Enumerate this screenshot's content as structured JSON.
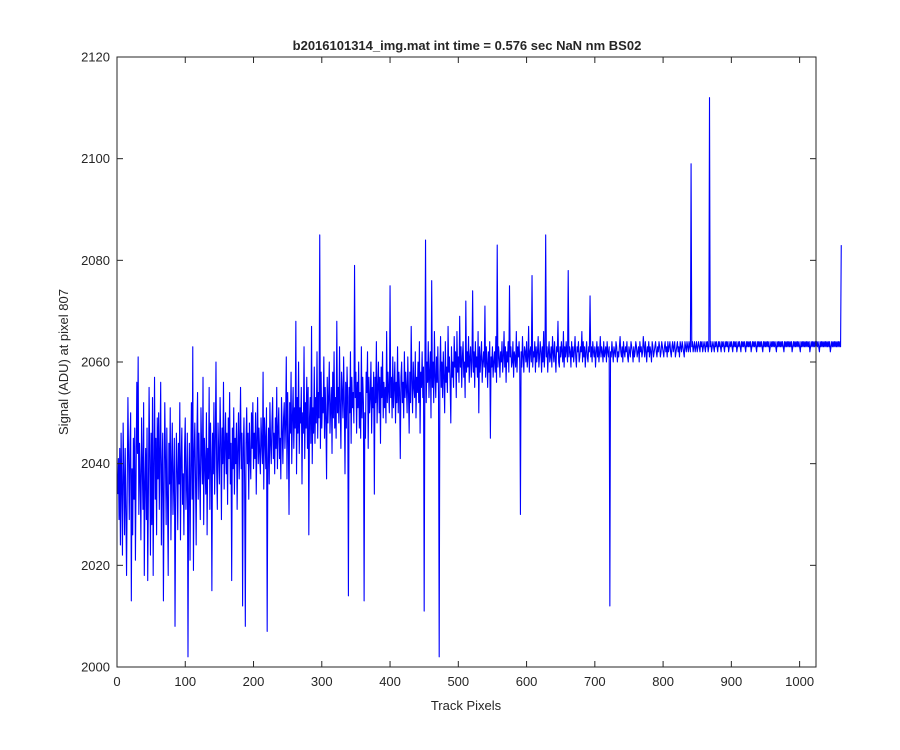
{
  "colors": {
    "series": "#0000ff",
    "axes": "#262626",
    "background": "#ffffff"
  },
  "chart_data": {
    "type": "line",
    "title": "b2016101314_img.mat int time = 0.576 sec  NaN nm BS02",
    "xlabel": "Track Pixels",
    "ylabel": "Signal (ADU) at pixel 807",
    "xlim": [
      0,
      1024
    ],
    "ylim": [
      2000,
      2120
    ],
    "xticks": [
      0,
      100,
      200,
      300,
      400,
      500,
      600,
      700,
      800,
      900,
      1000
    ],
    "yticks": [
      2000,
      2020,
      2040,
      2060,
      2080,
      2100,
      2120
    ],
    "grid": false,
    "box": true,
    "series": [
      {
        "color": "#0000ff",
        "x_start": 1,
        "x_step": 1,
        "values": [
          2034,
          2041,
          2029,
          2043,
          2024,
          2046,
          2035,
          2022,
          2048,
          2038,
          2026,
          2043,
          2031,
          2018,
          2036,
          2053,
          2041,
          2029,
          2044,
          2050,
          2013,
          2039,
          2026,
          2045,
          2033,
          2047,
          2021,
          2038,
          2056,
          2042,
          2061,
          2030,
          2044,
          2037,
          2025,
          2049,
          2040,
          2031,
          2052,
          2018,
          2036,
          2043,
          2029,
          2047,
          2017,
          2034,
          2055,
          2041,
          2022,
          2046,
          2028,
          2053,
          2018,
          2040,
          2057,
          2033,
          2045,
          2026,
          2049,
          2037,
          2050,
          2031,
          2043,
          2056,
          2024,
          2039,
          2046,
          2013,
          2035,
          2052,
          2041,
          2028,
          2047,
          2033,
          2018,
          2044,
          2036,
          2051,
          2025,
          2040,
          2048,
          2030,
          2037,
          2045,
          2008,
          2033,
          2046,
          2039,
          2027,
          2044,
          2036,
          2052,
          2025,
          2041,
          2047,
          2032,
          2038,
          2026,
          2043,
          2049,
          2031,
          2037,
          2046,
          2002,
          2035,
          2044,
          2021,
          2039,
          2052,
          2033,
          2063,
          2019,
          2042,
          2048,
          2037,
          2024,
          2045,
          2054,
          2033,
          2046,
          2038,
          2029,
          2051,
          2043,
          2036,
          2057,
          2028,
          2045,
          2040,
          2034,
          2050,
          2026,
          2043,
          2037,
          2055,
          2031,
          2048,
          2041,
          2015,
          2046,
          2038,
          2052,
          2034,
          2044,
          2060,
          2039,
          2031,
          2048,
          2042,
          2036,
          2053,
          2045,
          2029,
          2047,
          2040,
          2056,
          2035,
          2043,
          2050,
          2038,
          2046,
          2032,
          2049,
          2041,
          2054,
          2036,
          2044,
          2017,
          2047,
          2039,
          2051,
          2034,
          2045,
          2040,
          2048,
          2031,
          2043,
          2050,
          2037,
          2045,
          2055,
          2039,
          2046,
          2012,
          2043,
          2049,
          2036,
          2008,
          2044,
          2051,
          2040,
          2046,
          2033,
          2048,
          2041,
          2037,
          2050,
          2043,
          2052,
          2039,
          2046,
          2041,
          2050,
          2034,
          2045,
          2053,
          2040,
          2047,
          2042,
          2038,
          2049,
          2044,
          2040,
          2058,
          2035,
          2049,
          2045,
          2039,
          2051,
          2007,
          2041,
          2047,
          2036,
          2052,
          2044,
          2040,
          2048,
          2053,
          2041,
          2046,
          2038,
          2049,
          2043,
          2055,
          2039,
          2047,
          2051,
          2041,
          2045,
          2037,
          2053,
          2047,
          2040,
          2049,
          2052,
          2043,
          2048,
          2061,
          2037,
          2054,
          2045,
          2030,
          2052,
          2046,
          2058,
          2040,
          2049,
          2055,
          2043,
          2051,
          2047,
          2068,
          2038,
          2053,
          2046,
          2060,
          2042,
          2051,
          2048,
          2055,
          2036,
          2050,
          2046,
          2063,
          2041,
          2052,
          2047,
          2057,
          2043,
          2055,
          2026,
          2049,
          2053,
          2044,
          2067,
          2040,
          2051,
          2046,
          2059,
          2044,
          2053,
          2048,
          2062,
          2045,
          2054,
          2049,
          2085,
          2043,
          2058,
          2047,
          2053,
          2050,
          2061,
          2045,
          2055,
          2049,
          2037,
          2057,
          2048,
          2053,
          2060,
          2046,
          2051,
          2055,
          2042,
          2058,
          2049,
          2062,
          2047,
          2053,
          2045,
          2068,
          2050,
          2055,
          2048,
          2063,
          2051,
          2043,
          2058,
          2054,
          2049,
          2061,
          2052,
          2038,
          2056,
          2047,
          2059,
          2053,
          2014,
          2055,
          2050,
          2062,
          2044,
          2057,
          2051,
          2054,
          2048,
          2079,
          2053,
          2058,
          2046,
          2056,
          2051,
          2060,
          2047,
          2054,
          2045,
          2063,
          2049,
          2057,
          2052,
          2013,
          2050,
          2045,
          2058,
          2054,
          2062,
          2043,
          2057,
          2050,
          2053,
          2060,
          2046,
          2055,
          2051,
          2058,
          2034,
          2057,
          2052,
          2064,
          2048,
          2055,
          2060,
          2050,
          2057,
          2044,
          2059,
          2053,
          2062,
          2049,
          2056,
          2051,
          2055,
          2048,
          2066,
          2052,
          2058,
          2054,
          2050,
          2075,
          2053,
          2057,
          2049,
          2061,
          2051,
          2055,
          2060,
          2048,
          2056,
          2052,
          2063,
          2050,
          2058,
          2054,
          2041,
          2057,
          2060,
          2052,
          2056,
          2049,
          2062,
          2053,
          2058,
          2055,
          2050,
          2061,
          2054,
          2046,
          2058,
          2052,
          2067,
          2056,
          2050,
          2060,
          2055,
          2053,
          2062,
          2049,
          2057,
          2054,
          2060,
          2052,
          2064,
          2046,
          2058,
          2055,
          2062,
          2053,
          2059,
          2011,
          2057,
          2084,
          2052,
          2060,
          2056,
          2064,
          2053,
          2058,
          2062,
          2049,
          2076,
          2055,
          2060,
          2052,
          2066,
          2057,
          2053,
          2061,
          2056,
          2063,
          2054,
          2002,
          2058,
          2065,
          2055,
          2060,
          2053,
          2062,
          2057,
          2050,
          2064,
          2056,
          2059,
          2054,
          2067,
          2058,
          2061,
          2056,
          2048,
          2063,
          2057,
          2060,
          2055,
          2065,
          2059,
          2062,
          2053,
          2066,
          2058,
          2061,
          2056,
          2069,
          2059,
          2063,
          2055,
          2061,
          2064,
          2057,
          2060,
          2053,
          2072,
          2058,
          2062,
          2059,
          2065,
          2056,
          2061,
          2063,
          2057,
          2060,
          2074,
          2058,
          2062,
          2055,
          2064,
          2059,
          2061,
          2057,
          2066,
          2050,
          2063,
          2058,
          2061,
          2064,
          2056,
          2060,
          2062,
          2059,
          2071,
          2057,
          2063,
          2060,
          2055,
          2062,
          2058,
          2064,
          2045,
          2061,
          2059,
          2063,
          2057,
          2060,
          2062,
          2058,
          2065,
          2056,
          2083,
          2059,
          2063,
          2061,
          2057,
          2062,
          2060,
          2064,
          2058,
          2061,
          2066,
          2059,
          2063,
          2056,
          2062,
          2060,
          2064,
          2058,
          2075,
          2061,
          2063,
          2059,
          2060,
          2064,
          2057,
          2062,
          2061,
          2059,
          2066,
          2058,
          2063,
          2061,
          2064,
          2060,
          2030,
          2062,
          2059,
          2065,
          2061,
          2058,
          2063,
          2062,
          2060,
          2064,
          2059,
          2061,
          2067,
          2058,
          2062,
          2063,
          2060,
          2077,
          2059,
          2062,
          2061,
          2064,
          2058,
          2063,
          2060,
          2062,
          2065,
          2059,
          2061,
          2064,
          2062,
          2058,
          2063,
          2060,
          2066,
          2059,
          2062,
          2085,
          2061,
          2063,
          2058,
          2062,
          2064,
          2060,
          2061,
          2063,
          2059,
          2065,
          2062,
          2060,
          2064,
          2061,
          2058,
          2063,
          2062,
          2068,
          2060,
          2059,
          2063,
          2061,
          2064,
          2062,
          2060,
          2066,
          2059,
          2063,
          2061,
          2064,
          2062,
          2060,
          2078,
          2061,
          2063,
          2062,
          2059,
          2064,
          2061,
          2063,
          2060,
          2062,
          2065,
          2061,
          2059,
          2063,
          2062,
          2064,
          2060,
          2061,
          2063,
          2062,
          2066,
          2060,
          2064,
          2061,
          2063,
          2059,
          2062,
          2064,
          2061,
          2060,
          2063,
          2062,
          2073,
          2061,
          2063,
          2060,
          2064,
          2062,
          2061,
          2063,
          2059,
          2062,
          2064,
          2061,
          2063,
          2060,
          2062,
          2065,
          2061,
          2063,
          2062,
          2060,
          2064,
          2061,
          2062,
          2063,
          2060,
          2064,
          2062,
          2061,
          2063,
          2012,
          2062,
          2061,
          2064,
          2062,
          2060,
          2063,
          2062,
          2061,
          2064,
          2063,
          2060,
          2062,
          2061,
          2063,
          2065,
          2062,
          2061,
          2063,
          2060,
          2064,
          2062,
          2061,
          2063,
          2062,
          2064,
          2061,
          2060,
          2063,
          2062,
          2061,
          2064,
          2063,
          2062,
          2060,
          2063,
          2061,
          2062,
          2064,
          2063,
          2061,
          2062,
          2063,
          2060,
          2064,
          2062,
          2063,
          2061,
          2062,
          2065,
          2063,
          2061,
          2064,
          2062,
          2060,
          2063,
          2062,
          2064,
          2061,
          2063,
          2062,
          2060,
          2064,
          2063,
          2061,
          2062,
          2063,
          2064,
          2062,
          2061,
          2063,
          2062,
          2064,
          2063,
          2061,
          2062,
          2064,
          2063,
          2062,
          2061,
          2063,
          2064,
          2062,
          2063,
          2061,
          2064,
          2062,
          2063,
          2064,
          2062,
          2061,
          2063,
          2064,
          2062,
          2063,
          2064,
          2061,
          2062,
          2063,
          2064,
          2062,
          2063,
          2061,
          2064,
          2063,
          2062,
          2064,
          2063,
          2062,
          2061,
          2064,
          2063,
          2062,
          2064,
          2063,
          2062,
          2064,
          2063,
          2062,
          2099,
          2063,
          2064,
          2062,
          2063,
          2064,
          2062,
          2063,
          2064,
          2062,
          2063,
          2064,
          2063,
          2062,
          2064,
          2063,
          2064,
          2062,
          2063,
          2064,
          2063,
          2062,
          2064,
          2063,
          2064,
          2062,
          2063,
          2112,
          2063,
          2064,
          2062,
          2063,
          2064,
          2063,
          2062,
          2064,
          2063,
          2064,
          2063,
          2062,
          2064,
          2063,
          2064,
          2063,
          2062,
          2064,
          2063,
          2064,
          2063,
          2062,
          2064,
          2063,
          2064,
          2063,
          2064,
          2062,
          2063,
          2064,
          2063,
          2064,
          2063,
          2062,
          2064,
          2063,
          2064,
          2063,
          2064,
          2062,
          2063,
          2064,
          2063,
          2064,
          2063,
          2062,
          2064,
          2063,
          2064,
          2063,
          2064,
          2063,
          2062,
          2064,
          2063,
          2064,
          2063,
          2064,
          2063,
          2064,
          2062,
          2063,
          2064,
          2063,
          2064,
          2063,
          2064,
          2063,
          2062,
          2064,
          2063,
          2064,
          2063,
          2064,
          2063,
          2064,
          2063,
          2062,
          2064,
          2063,
          2064,
          2063,
          2064,
          2063,
          2064,
          2063,
          2064,
          2062,
          2063,
          2064,
          2063,
          2064,
          2063,
          2064,
          2063,
          2064,
          2063,
          2062,
          2064,
          2063,
          2064,
          2063,
          2064,
          2063,
          2064,
          2063,
          2064,
          2063,
          2062,
          2064,
          2063,
          2064,
          2063,
          2064,
          2063,
          2064,
          2063,
          2064,
          2063,
          2064,
          2062,
          2063,
          2064,
          2063,
          2064,
          2063,
          2064,
          2063,
          2064,
          2063,
          2064,
          2063,
          2062,
          2064,
          2063,
          2064,
          2063,
          2064,
          2063,
          2064,
          2063,
          2064,
          2063,
          2064,
          2063,
          2064,
          2062,
          2063,
          2064,
          2063,
          2064,
          2063,
          2064,
          2063,
          2064,
          2063,
          2064,
          2063,
          2064,
          2063,
          2062,
          2064,
          2063,
          2064,
          2063,
          2064,
          2063,
          2064,
          2063,
          2064,
          2063,
          2064,
          2063,
          2064,
          2063,
          2064,
          2062,
          2063,
          2064,
          2063,
          2064,
          2063,
          2064,
          2063,
          2064,
          2063,
          2064,
          2063,
          2064,
          2063,
          2064,
          2063,
          2083
        ]
      }
    ]
  }
}
